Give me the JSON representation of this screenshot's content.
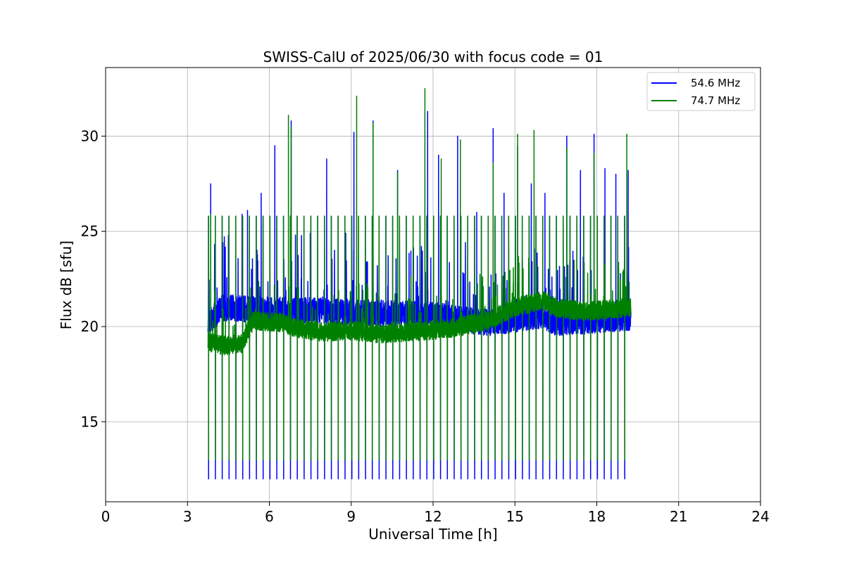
{
  "chart_data": {
    "type": "line",
    "title": "SWISS-CalU of 2025/06/30 with focus code = 01",
    "xlabel": "Universal Time [h]",
    "ylabel": "Flux dB [sfu]",
    "xlim": [
      0,
      24
    ],
    "ylim": [
      10.8,
      33.6
    ],
    "xticks": [
      0,
      3,
      6,
      9,
      12,
      15,
      18,
      21,
      24
    ],
    "yticks": [
      15,
      20,
      25,
      30
    ],
    "grid": true,
    "legend_position": "top-right",
    "time_range": [
      3.75,
      19.25
    ],
    "calibration_interval_h": 0.25,
    "series": [
      {
        "name": "54.6 MHz",
        "color": "#0000ff",
        "calibration_low": 12.0,
        "calibration_high": 25.8,
        "baseline": [
          [
            3.75,
            20.2
          ],
          [
            4.3,
            21.0
          ],
          [
            5.5,
            20.9
          ],
          [
            8.0,
            20.8
          ],
          [
            12.0,
            20.6
          ],
          [
            14.0,
            20.2
          ],
          [
            16.0,
            20.6
          ],
          [
            16.5,
            20.2
          ],
          [
            17.5,
            20.3
          ],
          [
            19.25,
            20.5
          ]
        ],
        "peaks": [
          [
            3.85,
            27.5
          ],
          [
            4.5,
            24.8
          ],
          [
            5.0,
            25.9
          ],
          [
            5.2,
            26.1
          ],
          [
            5.7,
            27.0
          ],
          [
            6.2,
            29.5
          ],
          [
            6.8,
            30.8
          ],
          [
            7.5,
            24.9
          ],
          [
            8.1,
            28.8
          ],
          [
            8.8,
            24.9
          ],
          [
            9.1,
            30.2
          ],
          [
            9.8,
            30.8
          ],
          [
            10.7,
            28.2
          ],
          [
            11.8,
            31.3
          ],
          [
            12.2,
            29.0
          ],
          [
            12.9,
            30.0
          ],
          [
            13.6,
            26.0
          ],
          [
            14.2,
            30.4
          ],
          [
            14.6,
            27.0
          ],
          [
            15.1,
            29.5
          ],
          [
            15.6,
            27.5
          ],
          [
            16.1,
            27.0
          ],
          [
            16.9,
            30.0
          ],
          [
            17.4,
            28.2
          ],
          [
            17.9,
            30.1
          ],
          [
            18.3,
            28.3
          ],
          [
            18.7,
            28.0
          ],
          [
            19.15,
            28.2
          ]
        ]
      },
      {
        "name": "74.7 MHz",
        "color": "#008000",
        "calibration_low": 13.0,
        "calibration_high": 25.8,
        "baseline": [
          [
            3.75,
            19.2
          ],
          [
            4.3,
            19.0
          ],
          [
            5.0,
            19.1
          ],
          [
            5.4,
            20.3
          ],
          [
            6.5,
            20.2
          ],
          [
            7.0,
            19.9
          ],
          [
            8.0,
            19.7
          ],
          [
            9.0,
            19.8
          ],
          [
            10.0,
            19.6
          ],
          [
            11.0,
            19.7
          ],
          [
            12.0,
            19.8
          ],
          [
            13.0,
            20.0
          ],
          [
            14.0,
            20.3
          ],
          [
            15.0,
            21.0
          ],
          [
            16.0,
            21.4
          ],
          [
            16.5,
            21.0
          ],
          [
            17.5,
            20.8
          ],
          [
            19.25,
            21.0
          ]
        ],
        "peaks": [
          [
            3.85,
            25.9
          ],
          [
            6.7,
            31.1
          ],
          [
            6.8,
            30.5
          ],
          [
            9.2,
            32.1
          ],
          [
            9.8,
            30.7
          ],
          [
            10.7,
            28.1
          ],
          [
            11.7,
            32.5
          ],
          [
            12.3,
            28.8
          ],
          [
            13.0,
            29.8
          ],
          [
            14.2,
            28.6
          ],
          [
            15.1,
            30.1
          ],
          [
            15.7,
            30.3
          ],
          [
            16.9,
            29.4
          ],
          [
            17.9,
            29.1
          ],
          [
            19.1,
            30.1
          ]
        ]
      }
    ]
  }
}
